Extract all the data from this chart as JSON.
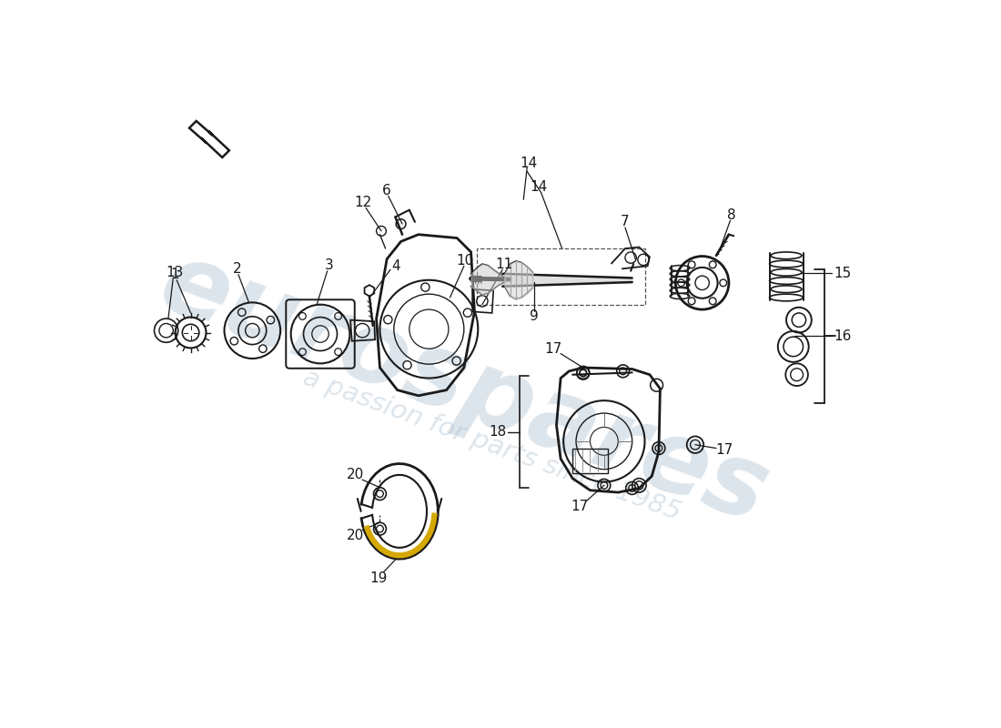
{
  "bg": "#ffffff",
  "lc": "#1a1a1a",
  "wm1": "eurospares",
  "wm2": "a passion for parts since 1985",
  "wmc": "#aabfcf",
  "wma": 0.4,
  "fs": 11
}
